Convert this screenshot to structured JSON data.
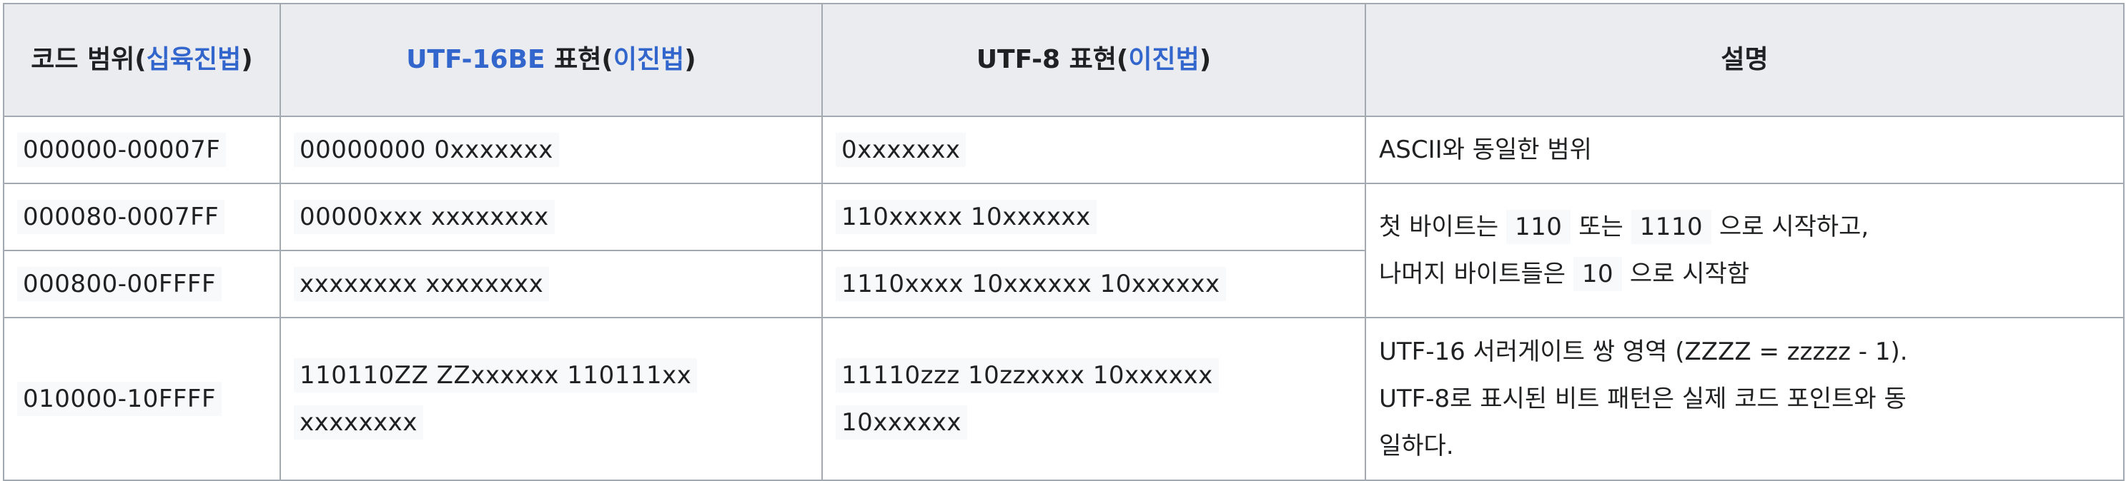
{
  "headers": {
    "col1_text": "코드 범위(",
    "col1_link": "십육진법",
    "col1_close": ")",
    "col2_link": "UTF-16BE",
    "col2_text": " 표현(",
    "col2_link2": "이진법",
    "col2_close": ")",
    "col3_text": "UTF-8 표현(",
    "col3_link": "이진법",
    "col3_close": ")",
    "col4_text": "설명"
  },
  "rows": [
    {
      "range": "000000-00007F",
      "utf16": "00000000 0xxxxxxx",
      "utf8": "0xxxxxxx",
      "desc": "ASCII와 동일한 범위"
    },
    {
      "range": "000080-0007FF",
      "utf16": "00000xxx xxxxxxxx",
      "utf8": "110xxxxx 10xxxxxx",
      "desc_parts": {
        "a": "첫 바이트는 ",
        "code1": "110",
        "b": " 또는 ",
        "code2": "1110",
        "c": " 으로 시작하고,",
        "d": "나머지 바이트들은 ",
        "code3": "10",
        "e": " 으로 시작함"
      }
    },
    {
      "range": "000800-00FFFF",
      "utf16": "xxxxxxxx xxxxxxxx",
      "utf8": "1110xxxx 10xxxxxx 10xxxxxx"
    },
    {
      "range": "010000-10FFFF",
      "utf16_line1": "110110ZZ ZZxxxxxx 110111xx",
      "utf16_line2": "xxxxxxxx",
      "utf8_line1": "11110zzz 10zzxxxx 10xxxxxx",
      "utf8_line2": "10xxxxxx",
      "desc_line1": "UTF-16 서러게이트 쌍 영역 (ZZZZ = zzzzz - 1).",
      "desc_line2": "UTF-8로 표시된 비트 패턴은 실제 코드 포인트와 동",
      "desc_line3": "일하다."
    }
  ]
}
